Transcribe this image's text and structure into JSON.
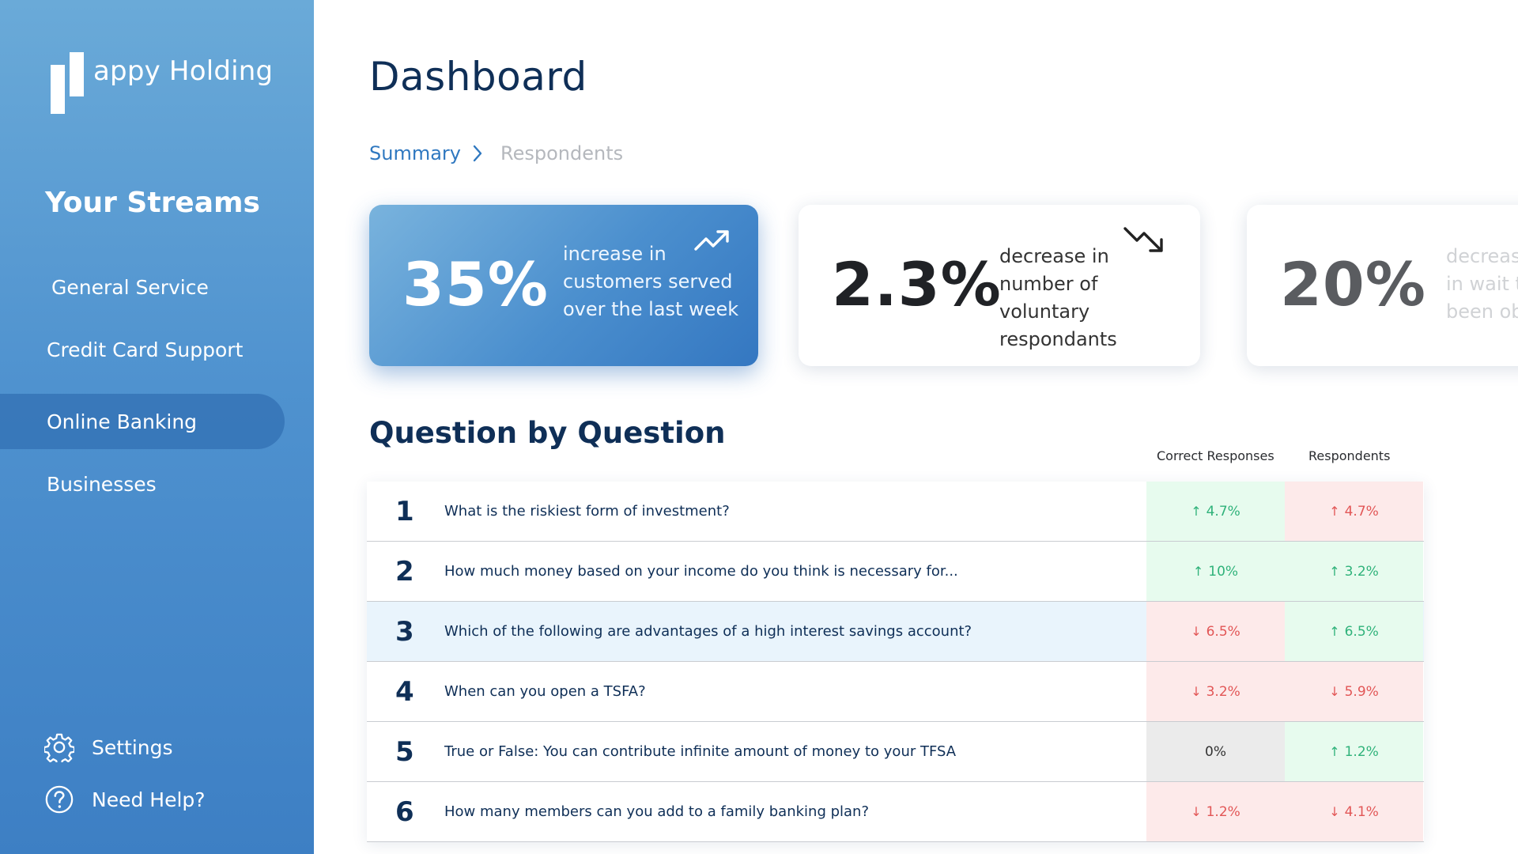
{
  "brand": {
    "name": "appy Holding"
  },
  "sidebar": {
    "title": "Your Streams",
    "items": [
      {
        "label": "General Service",
        "active": false
      },
      {
        "label": "Credit Card Support",
        "active": false
      },
      {
        "label": "Online Banking",
        "active": true
      },
      {
        "label": "Businesses",
        "active": false
      }
    ],
    "settings_label": "Settings",
    "help_label": "Need Help?"
  },
  "header": {
    "title": "Dashboard"
  },
  "breadcrumb": {
    "active": "Summary",
    "next": "Respondents"
  },
  "cards": [
    {
      "value": "35%",
      "text": "increase in customers served over the last week",
      "trend": "up",
      "lines": [
        "increase in",
        "customers served",
        "over the last week"
      ]
    },
    {
      "value": "2.3%",
      "text": "decrease in number of voluntary respondants",
      "trend": "down",
      "lines": [
        "decrease in",
        "number of voluntary",
        "respondants"
      ]
    },
    {
      "value": "20%",
      "text": "decreas in wait t been ob",
      "lines": [
        "decreas",
        "in wait t",
        "been ob"
      ]
    }
  ],
  "questions": {
    "title": "Question by Question",
    "columns": [
      "Correct Responses",
      "Respondents"
    ],
    "rows": [
      {
        "num": "1",
        "question": "What is the riskiest form of investment?",
        "correct": {
          "value": "4.7%",
          "dir": "up",
          "state": "up"
        },
        "respondents": {
          "value": "4.7%",
          "dir": "up",
          "state": "down"
        },
        "highlight": false
      },
      {
        "num": "2",
        "question": "How much money based on your income do you think is necessary for...",
        "correct": {
          "value": "10%",
          "dir": "up",
          "state": "up"
        },
        "respondents": {
          "value": "3.2%",
          "dir": "up",
          "state": "up"
        },
        "highlight": false
      },
      {
        "num": "3",
        "question": "Which of the following are advantages of a high interest savings account?",
        "correct": {
          "value": "6.5%",
          "dir": "down",
          "state": "down"
        },
        "respondents": {
          "value": "6.5%",
          "dir": "up",
          "state": "up"
        },
        "highlight": true
      },
      {
        "num": "4",
        "question": "When can you open a TSFA?",
        "correct": {
          "value": "3.2%",
          "dir": "down",
          "state": "down"
        },
        "respondents": {
          "value": "5.9%",
          "dir": "down",
          "state": "down"
        },
        "highlight": false
      },
      {
        "num": "5",
        "question": "True or False: You can contribute infinite amount of money to your TFSA",
        "correct": {
          "value": "0%",
          "dir": "none",
          "state": "neutral"
        },
        "respondents": {
          "value": "1.2%",
          "dir": "up",
          "state": "up"
        },
        "highlight": false
      },
      {
        "num": "6",
        "question": "How many members can you add to a family banking plan?",
        "correct": {
          "value": "1.2%",
          "dir": "down",
          "state": "down"
        },
        "respondents": {
          "value": "4.1%",
          "dir": "down",
          "state": "down"
        },
        "highlight": false
      }
    ]
  },
  "colors": {
    "accent": "#2f78c0",
    "navy": "#0f2f57",
    "positive": "#2fb27a",
    "negative": "#e25656"
  }
}
